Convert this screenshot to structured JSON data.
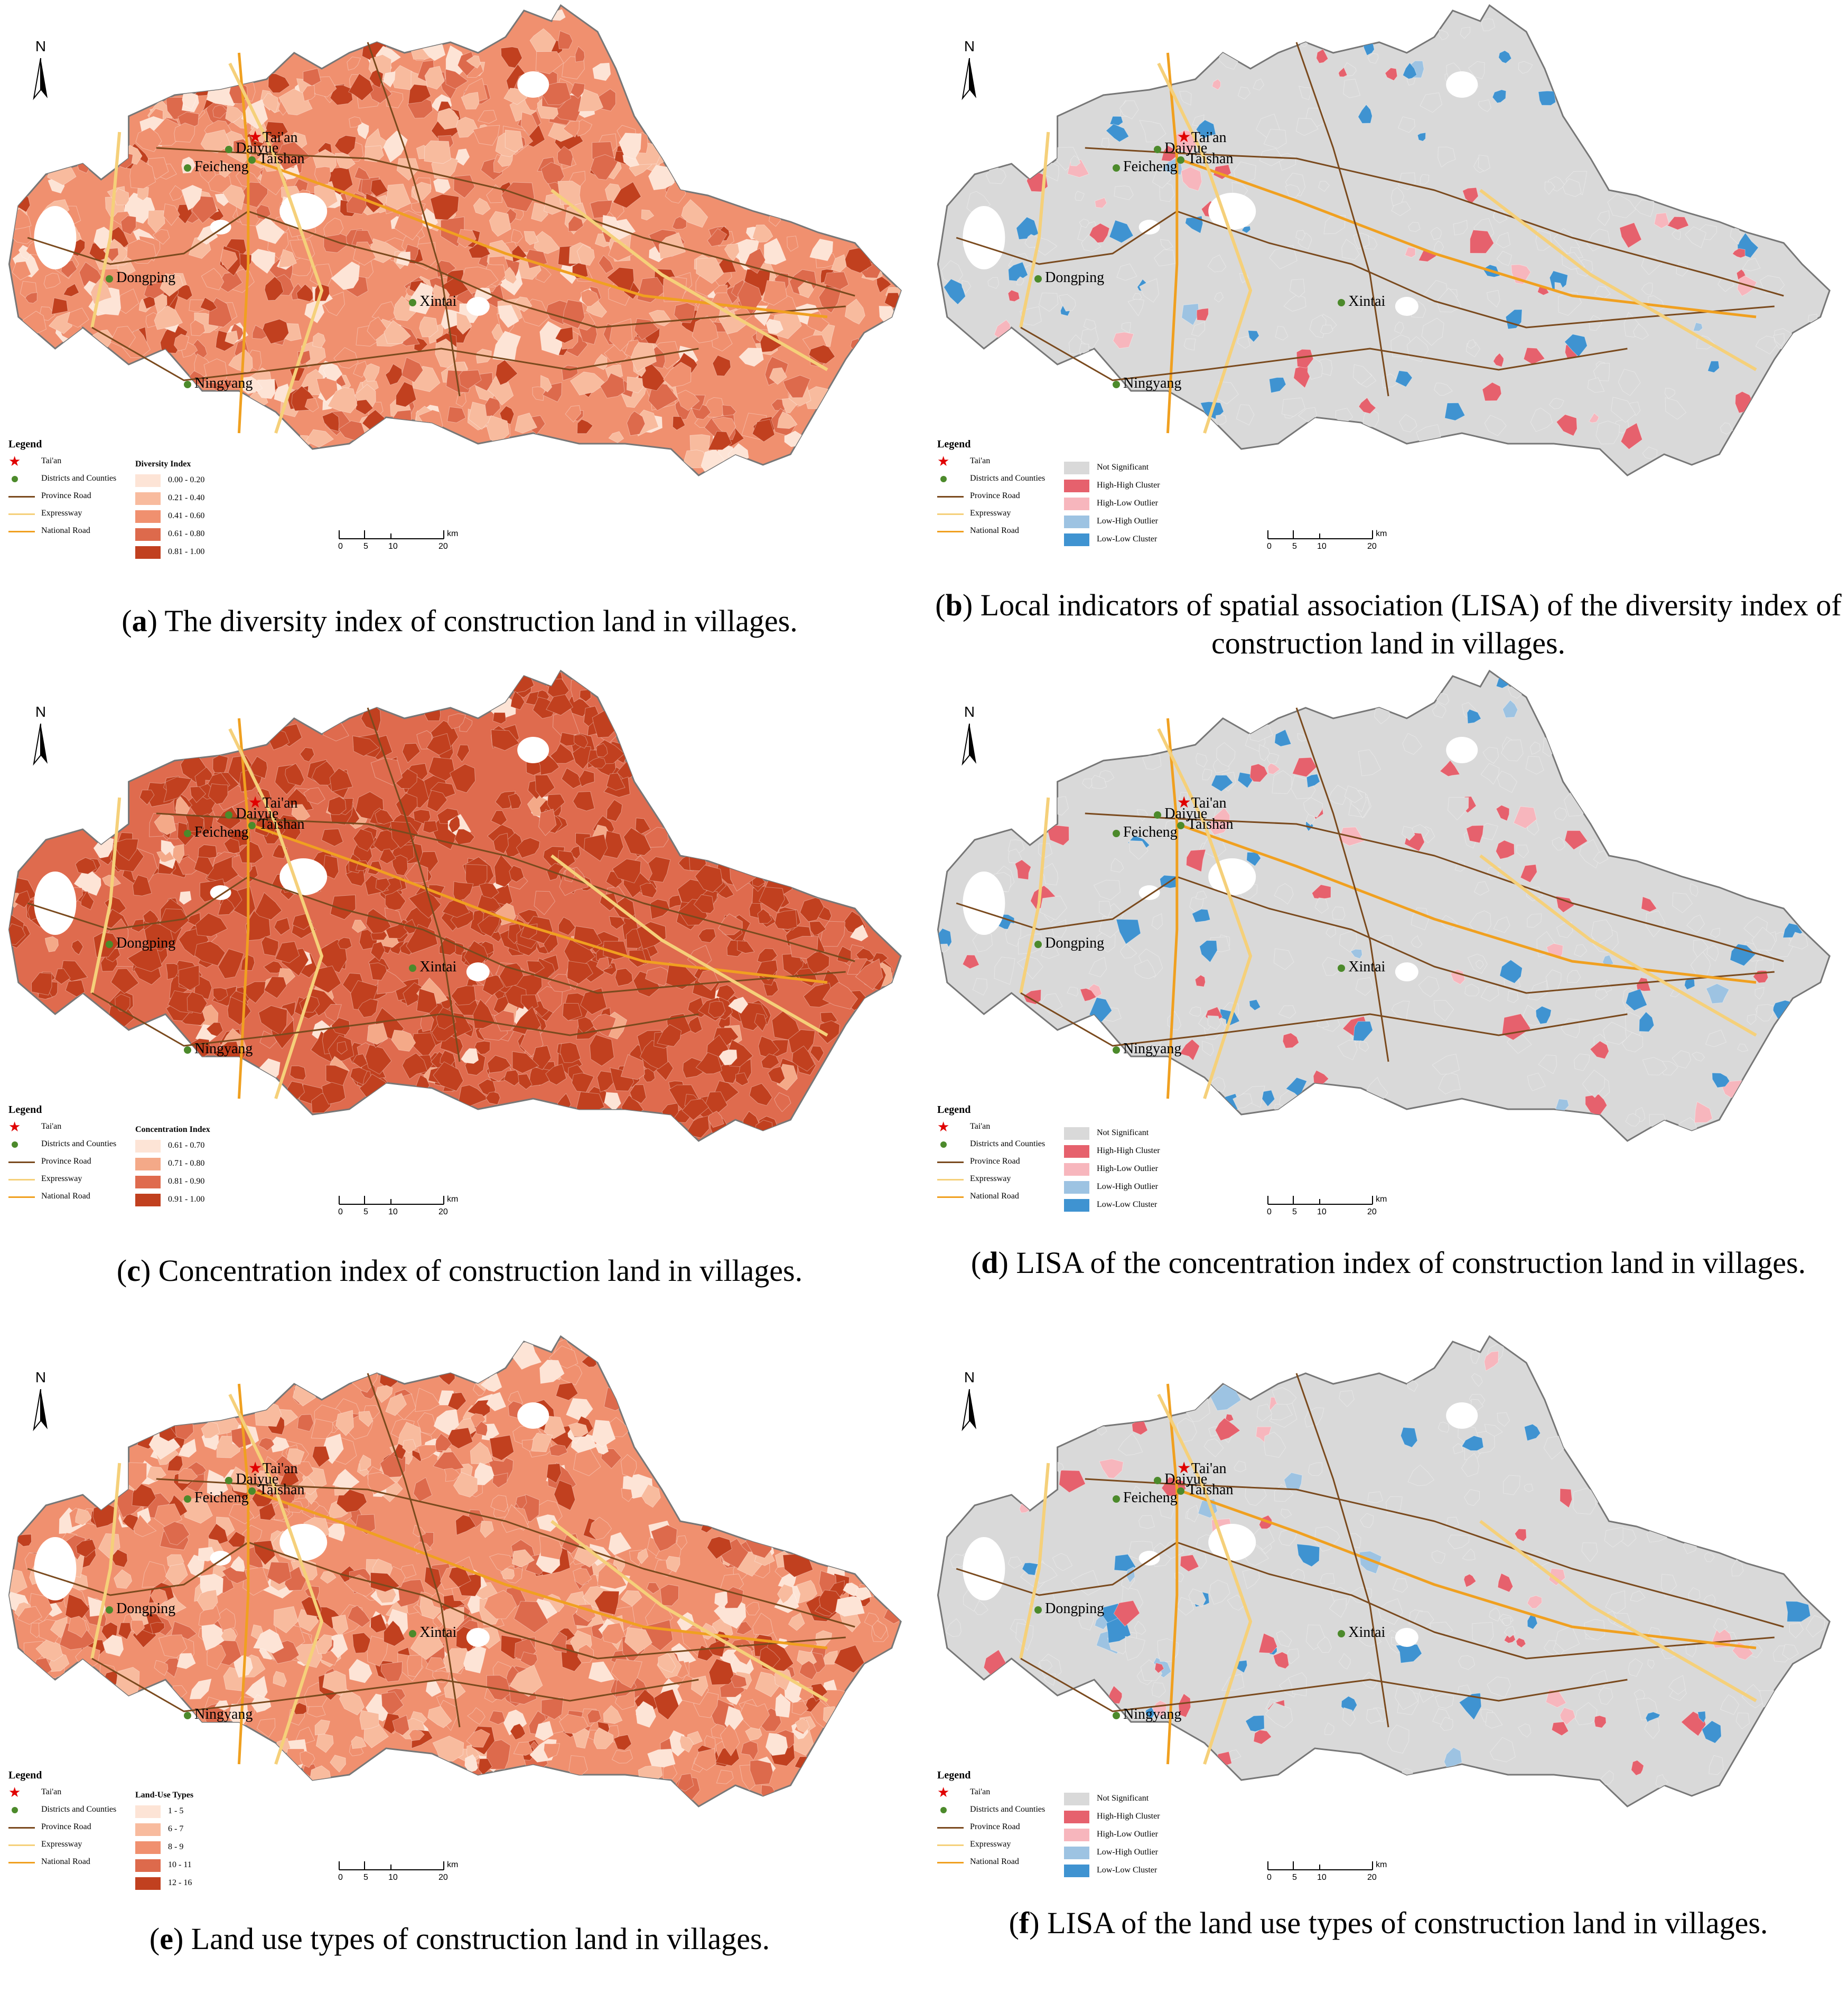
{
  "panels": [
    {
      "id": "a",
      "letter": "a",
      "caption": "The diversity index of construction land in villages.",
      "kind": "choropleth",
      "legend_heading": "Diversity Index",
      "classes": [
        {
          "label": "0.00 - 0.20",
          "color": "#fde4d6"
        },
        {
          "label": "0.21 - 0.40",
          "color": "#f8bb9e"
        },
        {
          "label": "0.41 - 0.60",
          "color": "#f0906f"
        },
        {
          "label": "0.61 - 0.80",
          "color": "#dd6a4c"
        },
        {
          "label": "0.81 - 1.00",
          "color": "#c1401f"
        }
      ]
    },
    {
      "id": "b",
      "letter": "b",
      "caption": "Local indicators of spatial association (LISA) of the diversity index of construction land in villages.",
      "kind": "lisa",
      "legend_heading": "",
      "classes": [
        {
          "label": "Not Significant",
          "color": "#d9d9d9"
        },
        {
          "label": "High-High Cluster",
          "color": "#e6616d"
        },
        {
          "label": "High-Low Outlier",
          "color": "#f7b6bd"
        },
        {
          "label": "Low-High Outlier",
          "color": "#9dc3e2"
        },
        {
          "label": "Low-Low Cluster",
          "color": "#3f93d1"
        }
      ]
    },
    {
      "id": "c",
      "letter": "c",
      "caption": "Concentration index of construction land in villages.",
      "kind": "choropleth",
      "legend_heading": "Concentration Index",
      "classes": [
        {
          "label": "0.61 - 0.70",
          "color": "#fde4d6"
        },
        {
          "label": "0.71 - 0.80",
          "color": "#f4a988"
        },
        {
          "label": "0.81 - 0.90",
          "color": "#df6b4e"
        },
        {
          "label": "0.91 - 1.00",
          "color": "#c1401f"
        }
      ]
    },
    {
      "id": "d",
      "letter": "d",
      "caption": "LISA of the concentration index of construction land in villages.",
      "kind": "lisa",
      "legend_heading": "",
      "classes": [
        {
          "label": "Not Significant",
          "color": "#d9d9d9"
        },
        {
          "label": "High-High Cluster",
          "color": "#e6616d"
        },
        {
          "label": "High-Low Outlier",
          "color": "#f7b6bd"
        },
        {
          "label": "Low-High Outlier",
          "color": "#9dc3e2"
        },
        {
          "label": "Low-Low Cluster",
          "color": "#3f93d1"
        }
      ]
    },
    {
      "id": "e",
      "letter": "e",
      "caption": "Land use types of construction land in villages.",
      "kind": "choropleth",
      "legend_heading": "Land-Use Types",
      "classes": [
        {
          "label": "1 - 5",
          "color": "#fde4d6"
        },
        {
          "label": "6 - 7",
          "color": "#f8bb9e"
        },
        {
          "label": "8 - 9",
          "color": "#f0906f"
        },
        {
          "label": "10 - 11",
          "color": "#dd6a4c"
        },
        {
          "label": "12 - 16",
          "color": "#c1401f"
        }
      ]
    },
    {
      "id": "f",
      "letter": "f",
      "caption": "LISA of the land use types of construction land in villages.",
      "kind": "lisa",
      "legend_heading": "",
      "classes": [
        {
          "label": "Not Significant",
          "color": "#d9d9d9"
        },
        {
          "label": "High-High Cluster",
          "color": "#e6616d"
        },
        {
          "label": "High-Low Outlier",
          "color": "#f7b6bd"
        },
        {
          "label": "Low-High Outlier",
          "color": "#9dc3e2"
        },
        {
          "label": "Low-Low Cluster",
          "color": "#3f93d1"
        }
      ]
    }
  ],
  "common": {
    "north_label": "N",
    "legend_title": "Legend",
    "legend_items": [
      {
        "label": "Tai'an",
        "symbol": "star",
        "color": "#e00000"
      },
      {
        "label": "Districts and Counties",
        "symbol": "dot",
        "color": "#4c8a2b"
      },
      {
        "label": "Province Road",
        "symbol": "line",
        "color": "#7a4a1e"
      },
      {
        "label": "Expressway",
        "symbol": "line",
        "color": "#f5d07a"
      },
      {
        "label": "National Road",
        "symbol": "line",
        "color": "#f0a020"
      }
    ],
    "scale_ticks": [
      "0",
      "5",
      "10",
      "20"
    ],
    "scale_unit": "km",
    "cities": [
      "Feicheng",
      "Daiyue",
      "Tai'an",
      "Taishan",
      "Dongping",
      "Ningyang",
      "Xintai"
    ]
  }
}
